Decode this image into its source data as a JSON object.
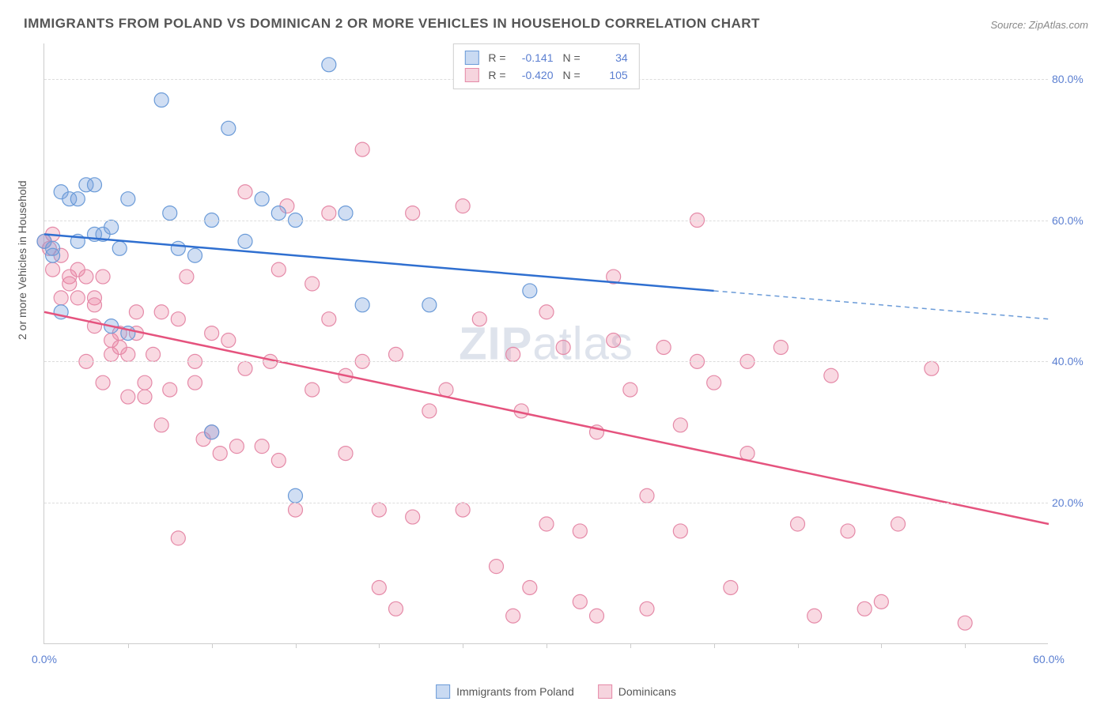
{
  "title": "IMMIGRANTS FROM POLAND VS DOMINICAN 2 OR MORE VEHICLES IN HOUSEHOLD CORRELATION CHART",
  "source": "Source: ZipAtlas.com",
  "ylabel": "2 or more Vehicles in Household",
  "watermark_bold": "ZIP",
  "watermark_rest": "atlas",
  "chart": {
    "type": "scatter",
    "xlim": [
      0,
      60
    ],
    "ylim": [
      0,
      85
    ],
    "y_ticks": [
      20,
      40,
      60,
      80
    ],
    "y_tick_labels": [
      "20.0%",
      "40.0%",
      "60.0%",
      "80.0%"
    ],
    "x_minor_ticks": [
      5,
      10,
      15,
      20,
      25,
      30,
      35,
      40,
      45,
      50,
      55
    ],
    "x_tick_labels": [
      {
        "v": 0,
        "t": "0.0%"
      },
      {
        "v": 60,
        "t": "60.0%"
      }
    ],
    "background_color": "#ffffff",
    "grid_color": "#dddddd",
    "series": [
      {
        "name": "Immigrants from Poland",
        "r": "-0.141",
        "n": "34",
        "color_fill": "rgba(120,160,220,0.35)",
        "color_stroke": "#6b9bd8",
        "swatch_fill": "#c9daf2",
        "swatch_stroke": "#6b9bd8",
        "marker_r": 9,
        "reg_line": {
          "x1": 0,
          "y1": 58,
          "x2": 40,
          "y2": 50,
          "color": "#2f6fd0",
          "width": 2.5
        },
        "reg_dash": {
          "x1": 40,
          "y1": 50,
          "x2": 60,
          "y2": 46,
          "color": "#6b9bd8",
          "width": 1.5
        },
        "points": [
          [
            0,
            57
          ],
          [
            0.5,
            56
          ],
          [
            0.5,
            55
          ],
          [
            1,
            64
          ],
          [
            1,
            47
          ],
          [
            1.5,
            63
          ],
          [
            2,
            63
          ],
          [
            2,
            57
          ],
          [
            2.5,
            65
          ],
          [
            3,
            65
          ],
          [
            3,
            58
          ],
          [
            3.5,
            58
          ],
          [
            4,
            59
          ],
          [
            4,
            45
          ],
          [
            4.5,
            56
          ],
          [
            5,
            63
          ],
          [
            5,
            44
          ],
          [
            7,
            77
          ],
          [
            7.5,
            61
          ],
          [
            8,
            56
          ],
          [
            9,
            55
          ],
          [
            10,
            60
          ],
          [
            10,
            30
          ],
          [
            11,
            73
          ],
          [
            12,
            57
          ],
          [
            13,
            63
          ],
          [
            14,
            61
          ],
          [
            15,
            60
          ],
          [
            17,
            82
          ],
          [
            18,
            61
          ],
          [
            19,
            48
          ],
          [
            23,
            48
          ],
          [
            29,
            50
          ],
          [
            15,
            21
          ]
        ]
      },
      {
        "name": "Dominicans",
        "r": "-0.420",
        "n": "105",
        "color_fill": "rgba(235,130,160,0.30)",
        "color_stroke": "#e58aa8",
        "swatch_fill": "#f6d4de",
        "swatch_stroke": "#e58aa8",
        "marker_r": 9,
        "reg_line": {
          "x1": 0,
          "y1": 47,
          "x2": 60,
          "y2": 17,
          "color": "#e5537e",
          "width": 2.5
        },
        "points": [
          [
            0,
            57
          ],
          [
            0.3,
            56
          ],
          [
            0.5,
            58
          ],
          [
            0.5,
            53
          ],
          [
            1,
            55
          ],
          [
            1,
            49
          ],
          [
            1.5,
            52
          ],
          [
            1.5,
            51
          ],
          [
            2,
            53
          ],
          [
            2,
            49
          ],
          [
            2.5,
            52
          ],
          [
            2.5,
            40
          ],
          [
            3,
            49
          ],
          [
            3,
            48
          ],
          [
            3,
            45
          ],
          [
            3.5,
            52
          ],
          [
            3.5,
            37
          ],
          [
            4,
            41
          ],
          [
            4,
            43
          ],
          [
            4.5,
            44
          ],
          [
            4.5,
            42
          ],
          [
            5,
            41
          ],
          [
            5,
            35
          ],
          [
            5.5,
            47
          ],
          [
            5.5,
            44
          ],
          [
            6,
            37
          ],
          [
            6,
            35
          ],
          [
            6.5,
            41
          ],
          [
            7,
            31
          ],
          [
            7,
            47
          ],
          [
            7.5,
            36
          ],
          [
            8,
            46
          ],
          [
            8,
            15
          ],
          [
            8.5,
            52
          ],
          [
            9,
            40
          ],
          [
            9,
            37
          ],
          [
            9.5,
            29
          ],
          [
            10,
            44
          ],
          [
            10,
            30
          ],
          [
            10.5,
            27
          ],
          [
            11,
            43
          ],
          [
            11.5,
            28
          ],
          [
            12,
            64
          ],
          [
            12,
            39
          ],
          [
            13,
            28
          ],
          [
            13.5,
            40
          ],
          [
            14,
            26
          ],
          [
            14,
            53
          ],
          [
            14.5,
            62
          ],
          [
            15,
            19
          ],
          [
            16,
            51
          ],
          [
            16,
            36
          ],
          [
            17,
            46
          ],
          [
            17,
            61
          ],
          [
            18,
            27
          ],
          [
            18,
            38
          ],
          [
            19,
            40
          ],
          [
            19,
            70
          ],
          [
            20,
            19
          ],
          [
            20,
            8
          ],
          [
            21,
            41
          ],
          [
            21,
            5
          ],
          [
            22,
            61
          ],
          [
            22,
            18
          ],
          [
            23,
            33
          ],
          [
            24,
            36
          ],
          [
            25,
            62
          ],
          [
            25,
            19
          ],
          [
            26,
            46
          ],
          [
            27,
            11
          ],
          [
            28,
            41
          ],
          [
            28,
            4
          ],
          [
            28.5,
            33
          ],
          [
            29,
            8
          ],
          [
            30,
            47
          ],
          [
            30,
            17
          ],
          [
            31,
            42
          ],
          [
            32,
            16
          ],
          [
            32,
            6
          ],
          [
            33,
            4
          ],
          [
            33,
            30
          ],
          [
            34,
            52
          ],
          [
            34,
            43
          ],
          [
            35,
            36
          ],
          [
            36,
            21
          ],
          [
            36,
            5
          ],
          [
            37,
            42
          ],
          [
            38,
            31
          ],
          [
            38,
            16
          ],
          [
            39,
            60
          ],
          [
            40,
            37
          ],
          [
            41,
            8
          ],
          [
            42,
            27
          ],
          [
            42,
            40
          ],
          [
            44,
            42
          ],
          [
            45,
            17
          ],
          [
            46,
            4
          ],
          [
            47,
            38
          ],
          [
            48,
            16
          ],
          [
            49,
            5
          ],
          [
            50,
            6
          ],
          [
            51,
            17
          ],
          [
            53,
            39
          ],
          [
            55,
            3
          ],
          [
            39,
            40
          ]
        ]
      }
    ]
  },
  "legend_bottom": [
    {
      "label": "Immigrants from Poland",
      "fill": "#c9daf2",
      "stroke": "#6b9bd8"
    },
    {
      "label": "Dominicans",
      "fill": "#f6d4de",
      "stroke": "#e58aa8"
    }
  ]
}
